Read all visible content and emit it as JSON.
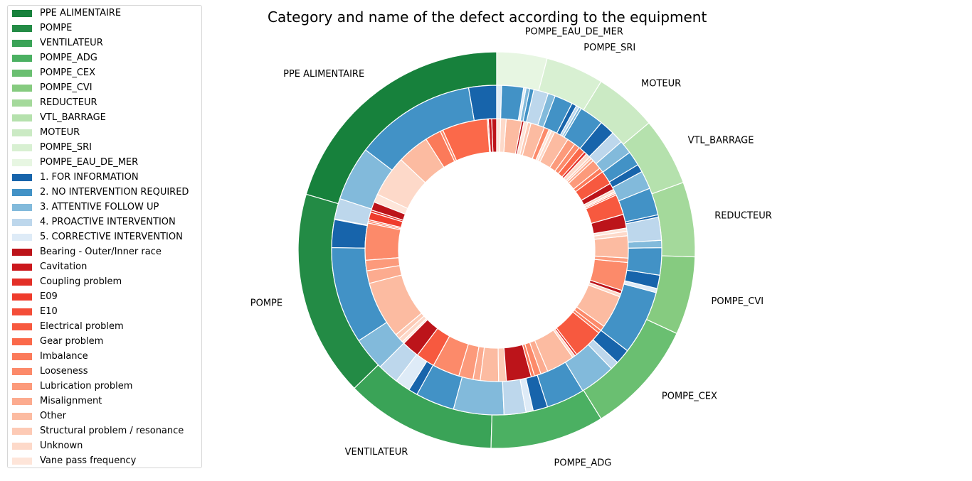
{
  "chart_data": {
    "type": "pie",
    "subtype": "nested-donut",
    "title": "Category and name of the defect according to the equipment",
    "legend_placement": "left",
    "legend": [
      {
        "label": "PPE ALIMENTAIRE",
        "color": "#17813c"
      },
      {
        "label": "POMPE",
        "color": "#238b45"
      },
      {
        "label": "VENTILATEUR",
        "color": "#3aa357"
      },
      {
        "label": "POMPE_ADG",
        "color": "#4bb062"
      },
      {
        "label": "POMPE_CEX",
        "color": "#6abf71"
      },
      {
        "label": "POMPE_CVI",
        "color": "#86cb80"
      },
      {
        "label": "REDUCTEUR",
        "color": "#a4d99b"
      },
      {
        "label": "VTL_BARRAGE",
        "color": "#b5e1ad"
      },
      {
        "label": "MOTEUR",
        "color": "#cbeac4"
      },
      {
        "label": "POMPE_SRI",
        "color": "#d8f0d2"
      },
      {
        "label": "POMPE_EAU_DE_MER",
        "color": "#e7f6e2"
      },
      {
        "label": "1. FOR INFORMATION",
        "color": "#1764ab"
      },
      {
        "label": "2. NO INTERVENTION REQUIRED",
        "color": "#4292c6"
      },
      {
        "label": "3. ATTENTIVE FOLLOW UP",
        "color": "#82badb"
      },
      {
        "label": "4. PROACTIVE INTERVENTION",
        "color": "#bdd7ec"
      },
      {
        "label": "5. CORRECTIVE INTERVENTION",
        "color": "#deebf7"
      },
      {
        "label": "Bearing - Outer/Inner race",
        "color": "#bc141a"
      },
      {
        "label": "Cavitation",
        "color": "#cb181d"
      },
      {
        "label": "Coupling problem",
        "color": "#e32f27"
      },
      {
        "label": "E09",
        "color": "#ef3c2c"
      },
      {
        "label": "E10",
        "color": "#f44d38"
      },
      {
        "label": "Electrical problem",
        "color": "#f7593f"
      },
      {
        "label": "Gear problem",
        "color": "#fb694a"
      },
      {
        "label": "Imbalance",
        "color": "#fb7a5a"
      },
      {
        "label": "Looseness",
        "color": "#fc8a6a"
      },
      {
        "label": "Lubrication problem",
        "color": "#fc9a7b"
      },
      {
        "label": "Misalignment",
        "color": "#fcab8f"
      },
      {
        "label": "Other",
        "color": "#fcbba1"
      },
      {
        "label": "Structural problem / resonance",
        "color": "#fdcab5"
      },
      {
        "label": "Unknown",
        "color": "#fdd9c9"
      },
      {
        "label": "Vane pass frequency",
        "color": "#fee5d9"
      }
    ],
    "equipment_ring": {
      "categories": [
        "PPE ALIMENTAIRE",
        "POMPE",
        "VENTILATEUR",
        "POMPE_ADG",
        "POMPE_CEX",
        "POMPE_CVI",
        "REDUCTEUR",
        "VTL_BARRAGE",
        "MOTEUR",
        "POMPE_SRI",
        "POMPE_EAU_DE_MER"
      ],
      "values": [
        22.5,
        18.5,
        13.5,
        10.2,
        10.2,
        7.0,
        6.7,
        6.1,
        5.6,
        5.2,
        4.5
      ]
    },
    "category_ring": {
      "values": [
        {
          "c": 0,
          "v": 4.6
        },
        {
          "c": 1,
          "v": 20.0
        },
        {
          "c": 2,
          "v": 9.0
        },
        {
          "c": 3,
          "v": 3.4
        },
        {
          "c": 4,
          "v": 0.1
        },
        {
          "c": 0,
          "v": 4.6
        },
        {
          "c": 1,
          "v": 16.0
        },
        {
          "c": 2,
          "v": 5.5
        },
        {
          "c": 3,
          "v": 3.5
        },
        {
          "c": 4,
          "v": 2.5
        },
        {
          "c": 0,
          "v": 1.5
        },
        {
          "c": 1,
          "v": 6.4
        },
        {
          "c": 2,
          "v": 8.3
        },
        {
          "c": 3,
          "v": 3.6
        },
        {
          "c": 4,
          "v": 1.2
        },
        {
          "c": 0,
          "v": 2.4
        },
        {
          "c": 1,
          "v": 6.3
        },
        {
          "c": 2,
          "v": 5.9
        },
        {
          "c": 3,
          "v": 1.4
        },
        {
          "c": 0,
          "v": 2.5
        },
        {
          "c": 1,
          "v": 10.6
        },
        {
          "c": 4,
          "v": 0.7
        },
        {
          "c": 0,
          "v": 2.2
        },
        {
          "c": 1,
          "v": 4.5
        },
        {
          "c": 2,
          "v": 1.2
        },
        {
          "c": 3,
          "v": 3.8
        },
        {
          "c": 0,
          "v": 0.4
        },
        {
          "c": 1,
          "v": 4.5
        },
        {
          "c": 2,
          "v": 3.0
        },
        {
          "c": 0,
          "v": 1.3
        },
        {
          "c": 1,
          "v": 2.4
        },
        {
          "c": 2,
          "v": 2.2
        },
        {
          "c": 3,
          "v": 2.0
        },
        {
          "c": 0,
          "v": 2.5
        },
        {
          "c": 1,
          "v": 4.0
        },
        {
          "c": 2,
          "v": 0.4
        },
        {
          "c": 3,
          "v": 0.5
        },
        {
          "c": 0,
          "v": 0.8
        },
        {
          "c": 1,
          "v": 3.0
        },
        {
          "c": 2,
          "v": 1.2
        },
        {
          "c": 3,
          "v": 2.4
        },
        {
          "c": 1,
          "v": 0.7
        },
        {
          "c": 2,
          "v": 0.6
        },
        {
          "c": 4,
          "v": 0.4
        },
        {
          "c": 1,
          "v": 3.6
        },
        {
          "c": 4,
          "v": 0.8
        }
      ]
    },
    "defect_ring": {
      "values": [
        {
          "c": 0,
          "v": 0.9
        },
        {
          "c": 1,
          "v": 0.6
        },
        {
          "c": 7,
          "v": 0.2
        },
        {
          "c": 6,
          "v": 8.2
        },
        {
          "c": 8,
          "v": 0.5
        },
        {
          "c": 7,
          "v": 2.9
        },
        {
          "c": 11,
          "v": 5.8
        },
        {
          "c": 13,
          "v": 7.5
        },
        {
          "c": 14,
          "v": 1.5
        },
        {
          "c": 0,
          "v": 1.5
        },
        {
          "c": 2,
          "v": 0.4
        },
        {
          "c": 3,
          "v": 1.4
        },
        {
          "c": 6,
          "v": 0.3
        },
        {
          "c": 7,
          "v": 0.3
        },
        {
          "c": 8,
          "v": 6.7
        },
        {
          "c": 9,
          "v": 1.9
        },
        {
          "c": 10,
          "v": 2.3
        },
        {
          "c": 11,
          "v": 10.4
        },
        {
          "c": 12,
          "v": 0.9
        },
        {
          "c": 13,
          "v": 0.8
        },
        {
          "c": 14,
          "v": 0.4
        },
        {
          "c": 0,
          "v": 3.2
        },
        {
          "c": 5,
          "v": 3.4
        },
        {
          "c": 8,
          "v": 4.9
        },
        {
          "c": 9,
          "v": 2.6
        },
        {
          "c": 10,
          "v": 1.3
        },
        {
          "c": 11,
          "v": 3.3
        },
        {
          "c": 12,
          "v": 1.4
        },
        {
          "c": 0,
          "v": 4.5
        },
        {
          "c": 7,
          "v": 0.6
        },
        {
          "c": 8,
          "v": 1.2
        },
        {
          "c": 10,
          "v": 1.3
        },
        {
          "c": 11,
          "v": 5.1
        },
        {
          "c": 13,
          "v": 0.5
        },
        {
          "c": 2,
          "v": 0.4
        },
        {
          "c": 5,
          "v": 5.5
        },
        {
          "c": 7,
          "v": 0.6
        },
        {
          "c": 8,
          "v": 0.9
        },
        {
          "c": 11,
          "v": 6.0
        },
        {
          "c": 13,
          "v": 0.6
        },
        {
          "c": 0,
          "v": 0.6
        },
        {
          "c": 8,
          "v": 5.1
        },
        {
          "c": 9,
          "v": 0.8
        },
        {
          "c": 11,
          "v": 4.0
        },
        {
          "c": 13,
          "v": 0.8
        },
        {
          "c": 14,
          "v": 0.6
        },
        {
          "c": 0,
          "v": 2.5
        },
        {
          "c": 5,
          "v": 3.7
        },
        {
          "c": 6,
          "v": 0.3
        },
        {
          "c": 12,
          "v": 0.3
        },
        {
          "c": 13,
          "v": 0.5
        },
        {
          "c": 0,
          "v": 1.2
        },
        {
          "c": 5,
          "v": 2.5
        },
        {
          "c": 7,
          "v": 0.8
        },
        {
          "c": 9,
          "v": 1.8
        },
        {
          "c": 10,
          "v": 0.5
        },
        {
          "c": 12,
          "v": 0.4
        },
        {
          "c": 13,
          "v": 0.8
        },
        {
          "c": 2,
          "v": 0.5
        },
        {
          "c": 6,
          "v": 1.2
        },
        {
          "c": 8,
          "v": 1.0
        },
        {
          "c": 9,
          "v": 1.5
        },
        {
          "c": 11,
          "v": 2.7
        },
        {
          "c": 13,
          "v": 0.6
        },
        {
          "c": 14,
          "v": 0.5
        },
        {
          "c": 8,
          "v": 0.9
        },
        {
          "c": 11,
          "v": 2.5
        },
        {
          "c": 12,
          "v": 0.6
        },
        {
          "c": 14,
          "v": 0.7
        },
        {
          "c": 0,
          "v": 0.4
        },
        {
          "c": 11,
          "v": 2.8
        },
        {
          "c": 13,
          "v": 1.0
        },
        {
          "c": 14,
          "v": 0.7
        }
      ]
    }
  }
}
